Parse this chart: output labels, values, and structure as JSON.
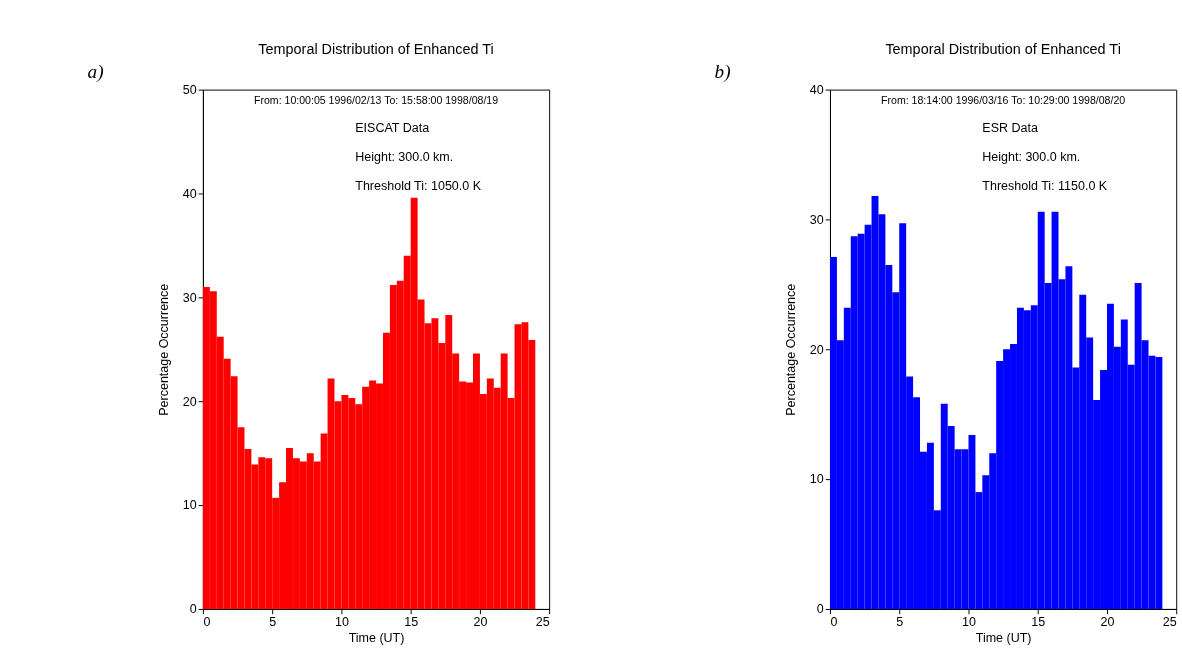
{
  "chart_data": [
    {
      "type": "histogram",
      "title": "Temporal Distribution of Enhanced Ti",
      "xlabel": "Time (UT)",
      "ylabel": "Percentage Occurrence",
      "annotations": [
        "a)",
        "From: 10:00:05 1996/02/13 To: 15:58:00 1998/08/19",
        "EISCAT Data",
        "Height:   300.0 km.",
        "Threshold Ti:    1050.0 K"
      ],
      "bins": [
        0,
        0.5,
        1,
        1.5,
        2,
        2.5,
        3,
        3.5,
        4,
        4.5,
        5,
        5.5,
        6,
        6.5,
        7,
        7.5,
        8,
        8.5,
        9,
        9.5,
        10,
        10.5,
        11,
        11.5,
        12,
        12.5,
        13,
        13.5,
        14,
        14.5,
        15,
        15.5,
        16,
        16.5,
        17,
        17.5,
        18,
        18.5,
        19,
        19.5,
        20,
        20.5,
        21,
        21.5,
        22,
        22.5,
        23,
        23.5,
        24
      ],
      "values": [
        31.0,
        30.6,
        26.2,
        24.1,
        22.4,
        17.5,
        15.4,
        13.9,
        14.6,
        14.5,
        10.7,
        12.2,
        15.5,
        14.5,
        14.2,
        15.0,
        14.2,
        16.9,
        22.2,
        20.0,
        20.6,
        20.3,
        19.7,
        21.4,
        22.0,
        21.7,
        26.6,
        31.2,
        31.6,
        34.0,
        39.6,
        29.8,
        27.5,
        28.0,
        25.6,
        28.3,
        24.6,
        21.9,
        21.8,
        24.6,
        20.7,
        22.2,
        21.3,
        24.6,
        20.3,
        27.4,
        27.6,
        25.9
      ],
      "color": "#ff0000",
      "xlim": [
        0,
        25
      ],
      "xticks": [
        0,
        5,
        10,
        15,
        20,
        25
      ],
      "ylim": [
        0,
        50
      ],
      "yticks": [
        0,
        10,
        20,
        30,
        40,
        50
      ]
    },
    {
      "type": "histogram",
      "title": "Temporal Distribution of Enhanced Ti",
      "xlabel": "Time (UT)",
      "ylabel": "Percentage Occurrence",
      "annotations": [
        "b)",
        "From: 18:14:00 1996/03/16 To: 10:29:00 1998/08/20",
        "ESR Data",
        "Height:   300.0 km.",
        "Threshold Ti:    1150.0 K"
      ],
      "bins": [
        0,
        0.5,
        1,
        1.5,
        2,
        2.5,
        3,
        3.5,
        4,
        4.5,
        5,
        5.5,
        6,
        6.5,
        7,
        7.5,
        8,
        8.5,
        9,
        9.5,
        10,
        10.5,
        11,
        11.5,
        12,
        12.5,
        13,
        13.5,
        14,
        14.5,
        15,
        15.5,
        16,
        16.5,
        17,
        17.5,
        18,
        18.5,
        19,
        19.5,
        20,
        20.5,
        21,
        21.5,
        22,
        22.5,
        23,
        23.5,
        24
      ],
      "values": [
        27.1,
        20.7,
        23.2,
        28.7,
        28.9,
        29.6,
        31.8,
        30.4,
        26.5,
        24.4,
        29.7,
        17.9,
        16.3,
        12.1,
        12.8,
        7.6,
        15.8,
        14.1,
        12.3,
        12.3,
        13.4,
        9.0,
        10.3,
        12.0,
        19.1,
        20.0,
        20.4,
        23.2,
        23.0,
        23.4,
        30.6,
        25.1,
        30.6,
        25.4,
        26.4,
        18.6,
        24.2,
        20.9,
        16.1,
        18.4,
        23.5,
        20.2,
        22.3,
        18.8,
        25.1,
        20.7,
        19.5,
        19.4
      ],
      "color": "#0000ff",
      "xlim": [
        0,
        25
      ],
      "xticks": [
        0,
        5,
        10,
        15,
        20,
        25
      ],
      "ylim": [
        0,
        40
      ],
      "yticks": [
        0,
        10,
        20,
        30,
        40
      ]
    }
  ]
}
